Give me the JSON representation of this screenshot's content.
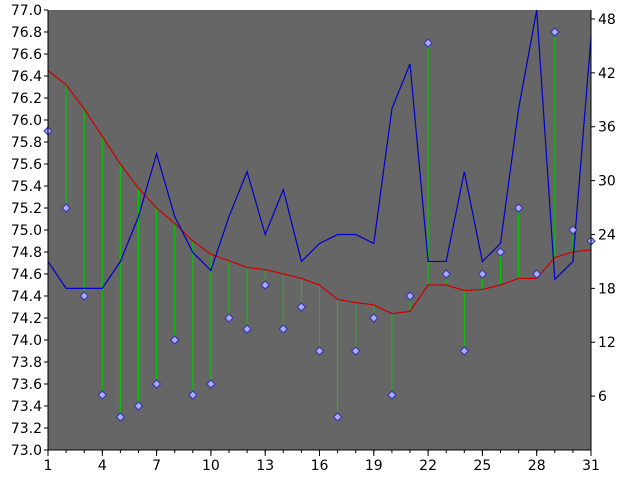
{
  "chart_data": {
    "type": "line",
    "x_ticks": [
      1,
      4,
      7,
      10,
      13,
      16,
      19,
      22,
      25,
      28,
      31
    ],
    "left_axis": {
      "ylim": [
        73.0,
        77.0
      ],
      "ticks": [
        "73.0",
        "73.2",
        "73.4",
        "73.6",
        "73.8",
        "74.0",
        "74.2",
        "74.4",
        "74.6",
        "74.8",
        "75.0",
        "75.2",
        "75.4",
        "75.6",
        "75.8",
        "76.0",
        "76.2",
        "76.4",
        "76.6",
        "76.8",
        "77.0"
      ]
    },
    "right_axis": {
      "ylim": [
        0,
        49
      ],
      "ticks": [
        "6",
        "12",
        "18",
        "24",
        "30",
        "36",
        "42",
        "48"
      ]
    },
    "x": [
      1,
      2,
      3,
      4,
      5,
      6,
      7,
      8,
      9,
      10,
      11,
      12,
      13,
      14,
      15,
      16,
      17,
      18,
      19,
      20,
      21,
      22,
      23,
      24,
      25,
      26,
      27,
      28,
      29,
      30,
      31
    ],
    "series": [
      {
        "values": [
          75.9,
          75.2,
          74.4,
          73.5,
          73.3,
          73.4,
          73.6,
          74.0,
          73.5,
          73.6,
          74.2,
          74.1,
          74.5,
          74.1,
          74.3,
          73.9,
          73.3,
          73.9,
          74.2,
          73.5,
          74.4,
          76.7,
          74.6,
          73.9,
          74.6,
          74.8,
          75.2,
          74.6,
          76.8,
          75.0,
          74.9
        ],
        "axis": "left",
        "style": "markers",
        "color": "#aaaaff"
      },
      {
        "values": [
          76.45,
          76.32,
          76.1,
          75.85,
          75.6,
          75.38,
          75.2,
          75.06,
          74.9,
          74.78,
          74.72,
          74.66,
          74.64,
          74.6,
          74.56,
          74.5,
          74.37,
          74.34,
          74.32,
          74.24,
          74.26,
          74.5,
          74.5,
          74.45,
          74.46,
          74.5,
          74.56,
          74.56,
          74.75,
          74.8,
          74.82
        ],
        "axis": "left",
        "style": "line",
        "color": "#cc0000"
      },
      {
        "values": [
          21,
          18,
          18,
          18,
          21,
          26,
          33,
          26,
          22,
          20,
          26,
          31,
          24,
          29,
          21,
          23,
          24,
          24,
          23,
          38,
          43,
          21,
          21,
          31,
          21,
          23,
          38,
          49,
          19,
          21,
          46
        ],
        "axis": "right",
        "style": "line",
        "color": "#0000cc"
      }
    ],
    "connector_color": "#00cc00",
    "plot_background": "#666666",
    "grid": false,
    "legend": "none"
  }
}
